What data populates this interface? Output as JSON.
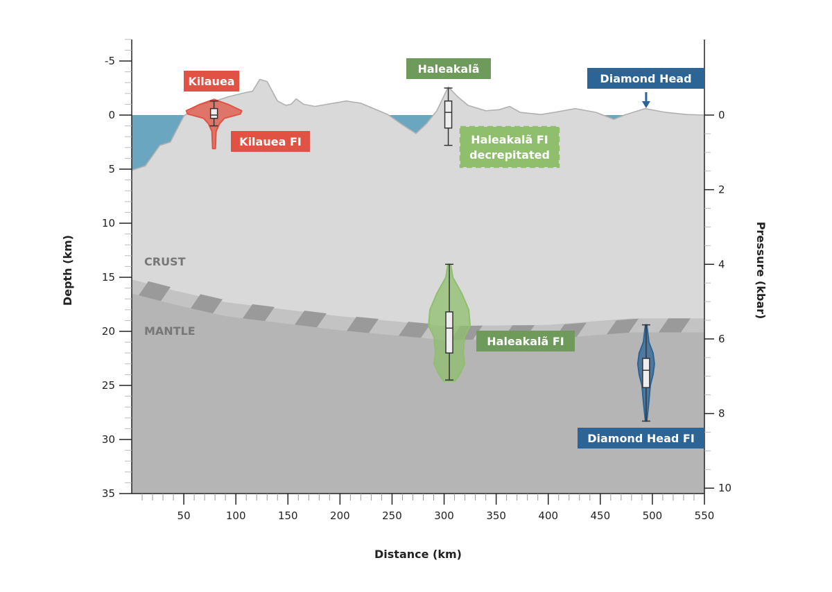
{
  "chart_data": {
    "type": "violin",
    "xlabel": "Distance (km)",
    "ylabel": "Depth (km)",
    "y2label": "Pressure (kbar)",
    "xlim": [
      0,
      550
    ],
    "ylim": [
      -7,
      35
    ],
    "y_inverted": true,
    "x_ticks": [
      50,
      100,
      150,
      200,
      250,
      300,
      350,
      400,
      450,
      500,
      550
    ],
    "y_ticks": [
      -5,
      0,
      5,
      10,
      15,
      20,
      25,
      30,
      35
    ],
    "y2_ticks": [
      0,
      2,
      4,
      6,
      8,
      10
    ],
    "km_per_kbar": 3.45,
    "zones": {
      "crust": "CRUST",
      "mantle": "MANTLE"
    },
    "topography": [
      [
        0,
        5.1
      ],
      [
        13,
        4.7
      ],
      [
        27,
        2.8
      ],
      [
        37,
        2.5
      ],
      [
        50,
        0.1
      ],
      [
        63,
        -0.9
      ],
      [
        80,
        -1.3
      ],
      [
        93,
        -1.7
      ],
      [
        110,
        -2.1
      ],
      [
        116,
        -2.2
      ],
      [
        123,
        -3.3
      ],
      [
        130,
        -3.1
      ],
      [
        140,
        -1.3
      ],
      [
        148,
        -0.9
      ],
      [
        153,
        -1.0
      ],
      [
        158,
        -1.5
      ],
      [
        165,
        -1.0
      ],
      [
        176,
        -0.8
      ],
      [
        206,
        -1.3
      ],
      [
        220,
        -1.1
      ],
      [
        246,
        -0.05
      ],
      [
        260,
        0.9
      ],
      [
        273,
        1.7
      ],
      [
        283,
        0.8
      ],
      [
        293,
        -0.4
      ],
      [
        304,
        -2.6
      ],
      [
        313,
        -1.7
      ],
      [
        323,
        -0.9
      ],
      [
        340,
        -0.4
      ],
      [
        353,
        -0.5
      ],
      [
        363,
        -0.8
      ],
      [
        373,
        -0.25
      ],
      [
        393,
        -0.05
      ],
      [
        406,
        -0.25
      ],
      [
        426,
        -0.6
      ],
      [
        446,
        -0.25
      ],
      [
        463,
        0.4
      ],
      [
        473,
        0
      ],
      [
        493,
        -0.6
      ],
      [
        513,
        -0.25
      ],
      [
        533,
        -0.05
      ],
      [
        550,
        0
      ]
    ],
    "moho": [
      [
        0,
        15.2
      ],
      [
        40,
        16.2
      ],
      [
        90,
        17.3
      ],
      [
        200,
        18.6
      ],
      [
        300,
        19.5
      ],
      [
        400,
        19.4
      ],
      [
        480,
        18.8
      ],
      [
        550,
        18.8
      ]
    ],
    "series": [
      {
        "name": "Kilauea FI",
        "x": 79,
        "whisker_low": -1.3,
        "q1": -0.6,
        "median": 0.0,
        "q3": 0.3,
        "whisker_high": 1.0,
        "min": -1.4,
        "max": 3.1,
        "color": "#e05243",
        "violin": true
      },
      {
        "name": "Haleakalã",
        "x": 304,
        "whisker_low": -2.5,
        "q1": -1.3,
        "median": -0.25,
        "q3": 1.2,
        "whisker_high": 2.8,
        "color": "#8fbf6d",
        "violin": false
      },
      {
        "name": "Haleakalã FI",
        "x": 305,
        "whisker_low": 13.8,
        "q1": 18.2,
        "median": 19.7,
        "q3": 22.0,
        "whisker_high": 24.5,
        "color": "#8fbf6d",
        "violin": true
      },
      {
        "name": "Diamond Head FI",
        "x": 494,
        "whisker_low": 19.4,
        "q1": 22.5,
        "median": 23.6,
        "q3": 25.2,
        "whisker_high": 28.3,
        "color": "#2c6496",
        "violin": true
      }
    ],
    "annotations": [
      {
        "text": "Kilauea",
        "color": "#e05243"
      },
      {
        "text": "Kilauea FI",
        "color": "#e05243"
      },
      {
        "text": "Haleakalã",
        "color": "#6e9a5b"
      },
      {
        "text": "Haleakalã FI",
        "text2": "decrepitated",
        "color": "#8fbf6d",
        "dashed": true
      },
      {
        "text": "Diamond Head",
        "color": "#2c6496",
        "arrow": true
      },
      {
        "text": "Haleakalã FI",
        "color": "#6e9a5b"
      },
      {
        "text": "Diamond Head FI",
        "color": "#2c6496"
      }
    ],
    "colors": {
      "ocean": "#6aa6c0",
      "crust": "#d9d9d9",
      "mantle": "#b5b5b5",
      "hatch": "#9a9a9a",
      "topo_line": "#b0b0b0"
    }
  }
}
